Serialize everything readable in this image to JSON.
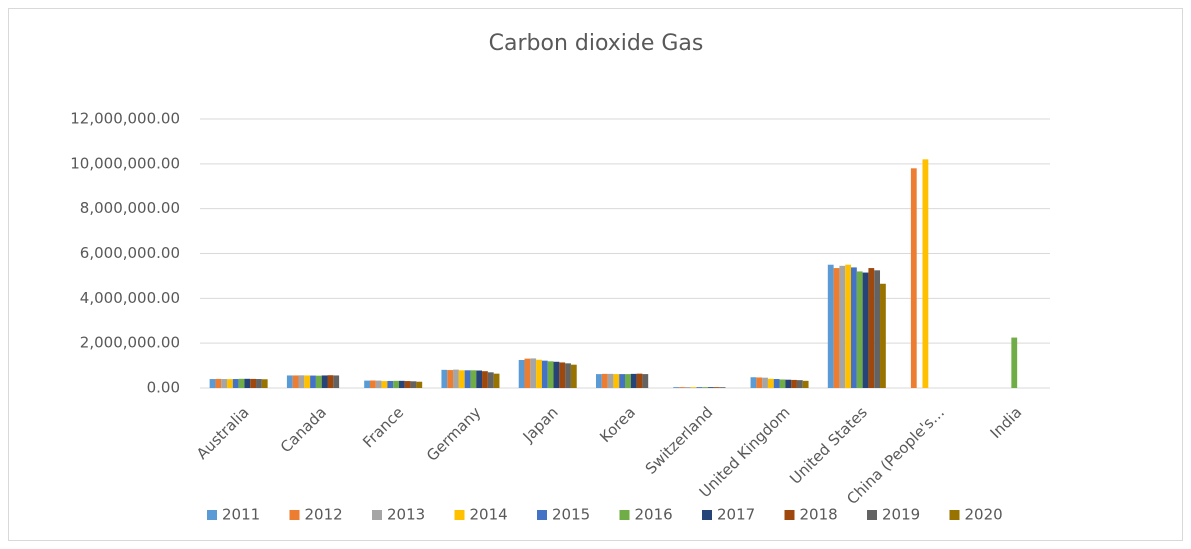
{
  "chart_data": {
    "type": "bar",
    "title": "Carbon dioxide Gas",
    "categories": [
      "Australia",
      "Canada",
      "France",
      "Germany",
      "Japan",
      "Korea",
      "Switzerland",
      "United Kingdom",
      "United States",
      "China (People's…",
      "India"
    ],
    "series": [
      {
        "name": "2011",
        "color": "#5b9bd5",
        "values": [
          400000,
          560000,
          330000,
          810000,
          1250000,
          620000,
          40000,
          480000,
          5500000,
          null,
          null
        ]
      },
      {
        "name": "2012",
        "color": "#ed7d31",
        "values": [
          405000,
          560000,
          335000,
          800000,
          1310000,
          630000,
          40000,
          470000,
          5350000,
          9800000,
          null
        ]
      },
      {
        "name": "2013",
        "color": "#a5a5a5",
        "values": [
          400000,
          565000,
          330000,
          820000,
          1320000,
          630000,
          40000,
          460000,
          5450000,
          null,
          null
        ]
      },
      {
        "name": "2014",
        "color": "#ffc000",
        "values": [
          395000,
          560000,
          310000,
          790000,
          1260000,
          620000,
          38000,
          410000,
          5500000,
          10200000,
          null
        ]
      },
      {
        "name": "2015",
        "color": "#4472c4",
        "values": [
          400000,
          555000,
          315000,
          790000,
          1220000,
          620000,
          38000,
          400000,
          5380000,
          null,
          null
        ]
      },
      {
        "name": "2016",
        "color": "#70ad47",
        "values": [
          410000,
          550000,
          320000,
          790000,
          1190000,
          620000,
          38000,
          380000,
          5200000,
          null,
          2250000
        ]
      },
      {
        "name": "2017",
        "color": "#264478",
        "values": [
          410000,
          560000,
          320000,
          780000,
          1170000,
          630000,
          37000,
          370000,
          5150000,
          null,
          null
        ]
      },
      {
        "name": "2018",
        "color": "#9e480e",
        "values": [
          405000,
          570000,
          310000,
          750000,
          1140000,
          640000,
          37000,
          360000,
          5350000,
          null,
          null
        ]
      },
      {
        "name": "2019",
        "color": "#636363",
        "values": [
          400000,
          560000,
          300000,
          700000,
          1100000,
          620000,
          36000,
          350000,
          5250000,
          null,
          null
        ]
      },
      {
        "name": "2020",
        "color": "#997300",
        "values": [
          390000,
          null,
          280000,
          640000,
          1040000,
          null,
          null,
          320000,
          4650000,
          null,
          null
        ]
      }
    ],
    "ylim": [
      0,
      12000000
    ],
    "yticks": [
      {
        "value": 0,
        "label": "0.00"
      },
      {
        "value": 2000000,
        "label": "2,000,000.00"
      },
      {
        "value": 4000000,
        "label": "4,000,000.00"
      },
      {
        "value": 6000000,
        "label": "6,000,000.00"
      },
      {
        "value": 8000000,
        "label": "8,000,000.00"
      },
      {
        "value": 10000000,
        "label": "10,000,000.00"
      },
      {
        "value": 12000000,
        "label": "12,000,000.00"
      }
    ],
    "grid": true
  }
}
